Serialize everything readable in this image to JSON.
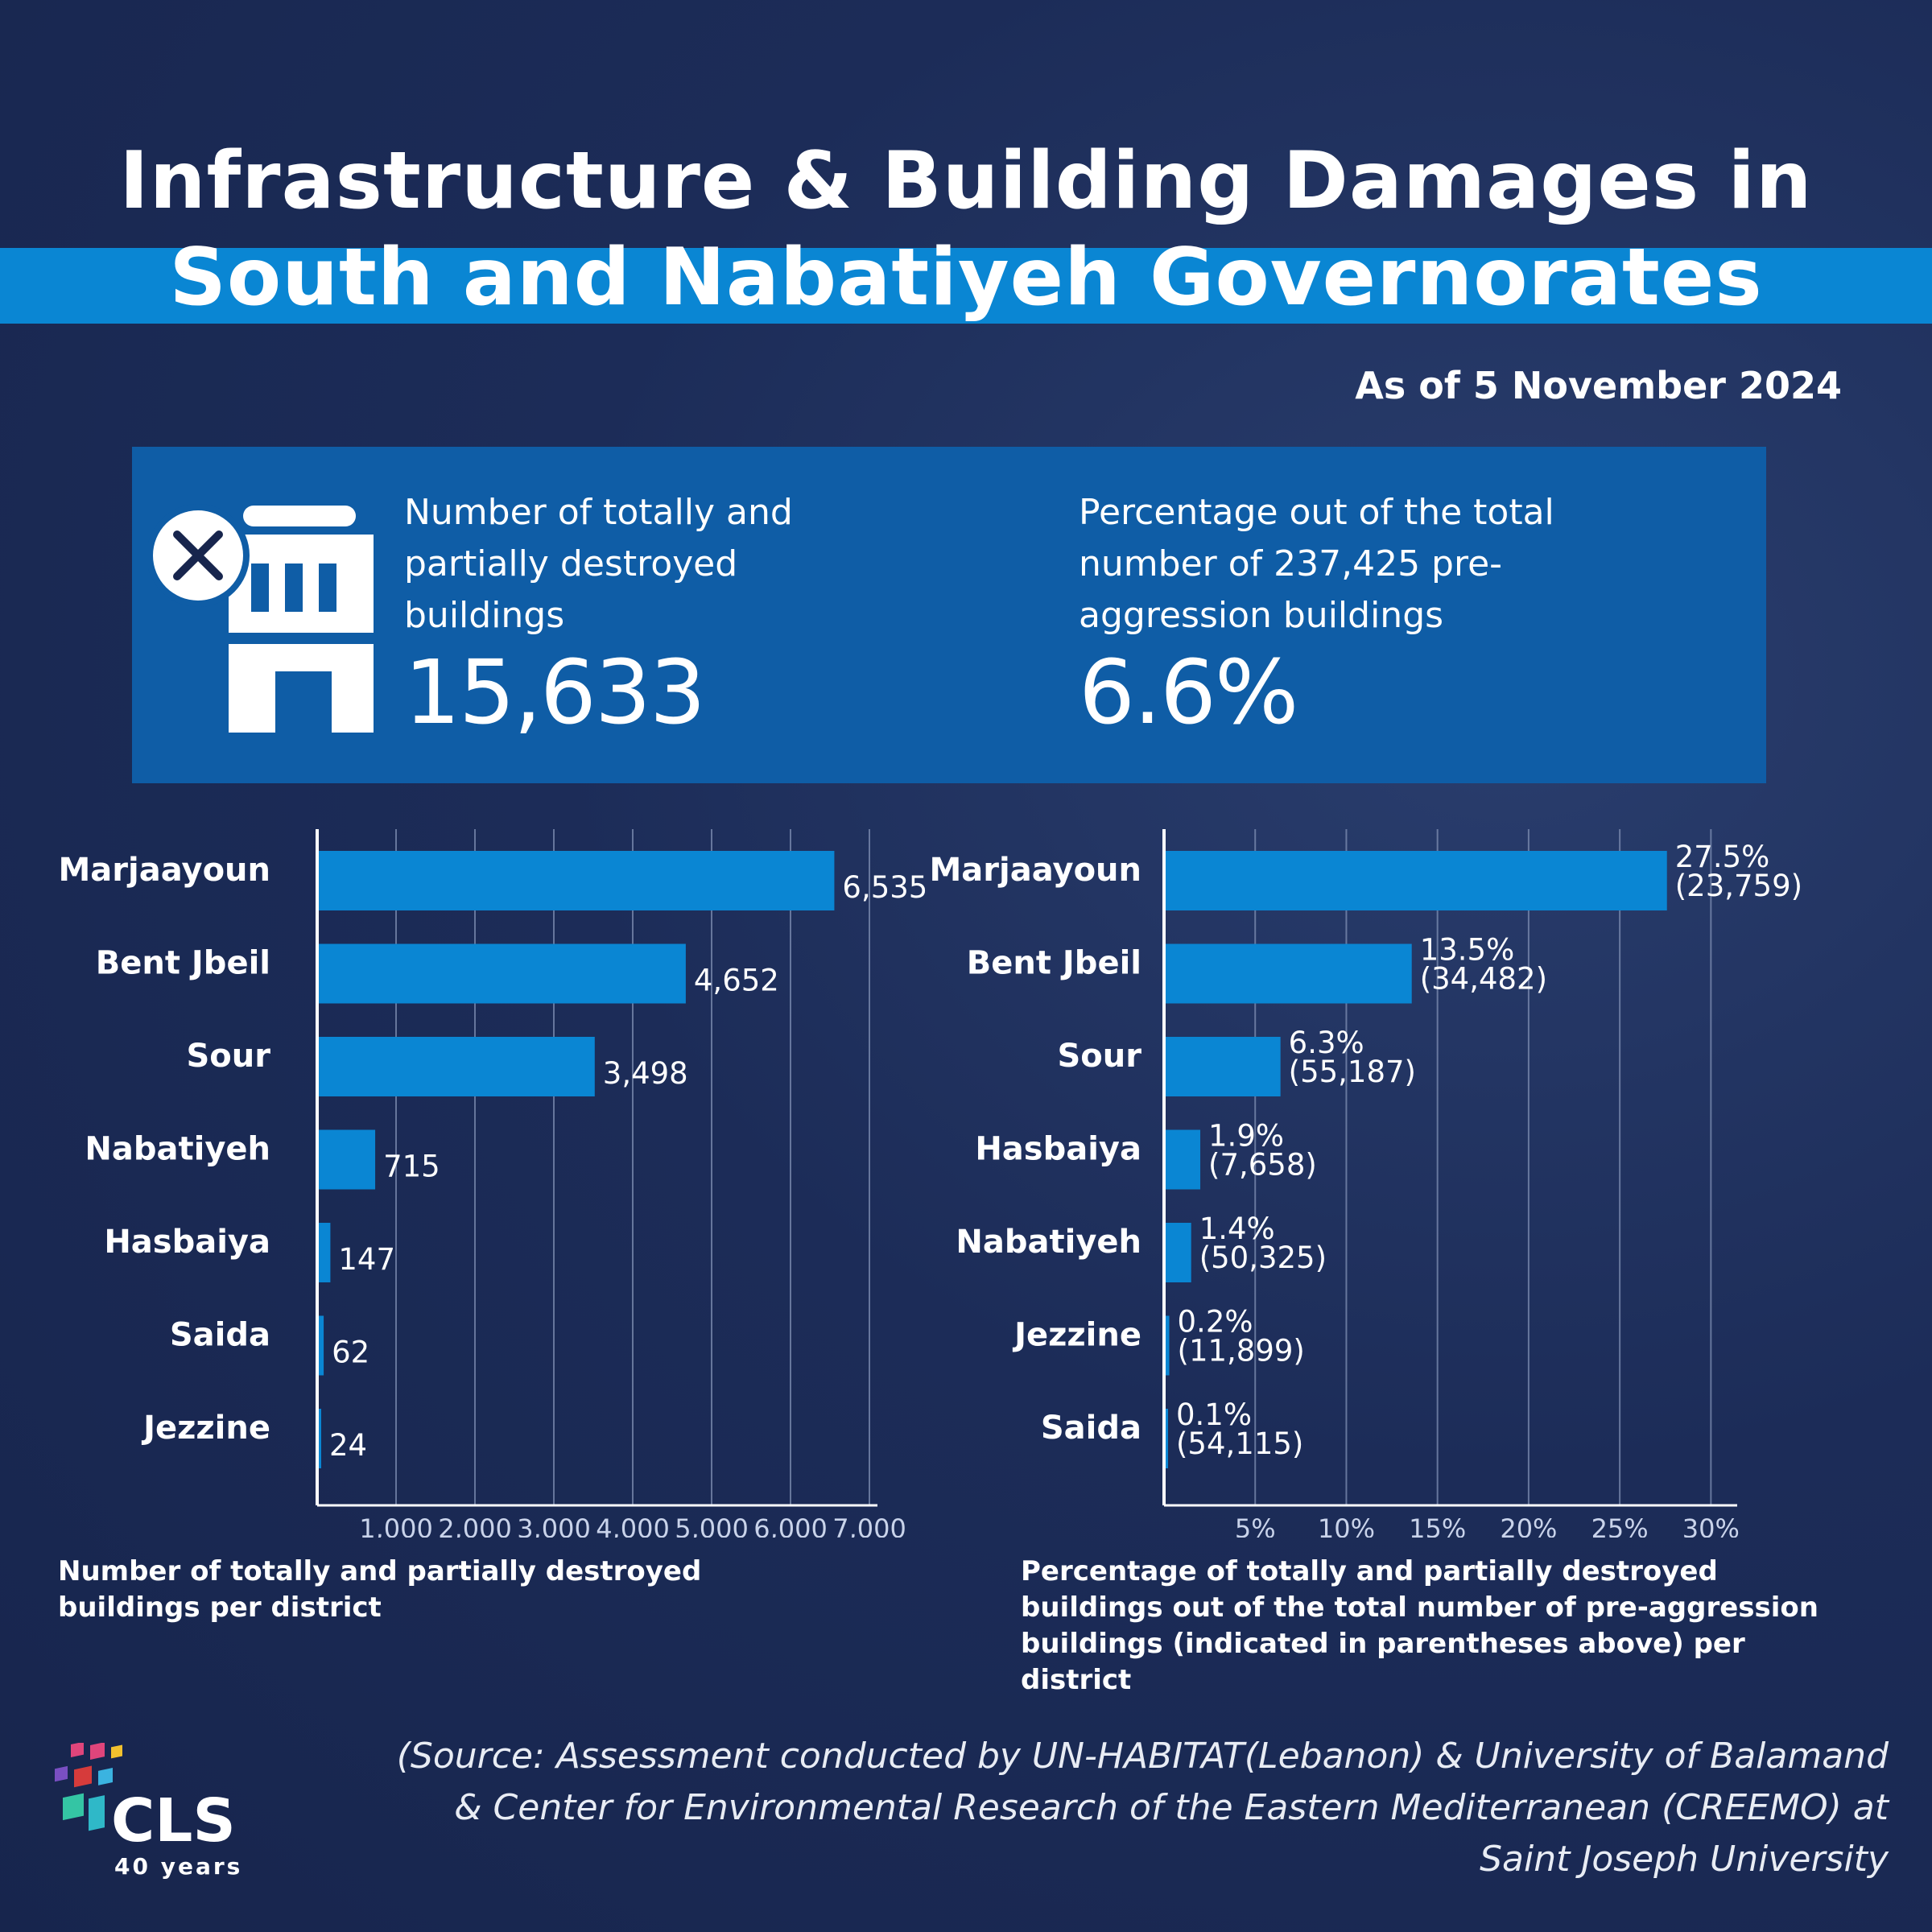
{
  "header": {
    "title_line1": "Infrastructure & Building Damages in",
    "title_line2": "South and Nabatiyeh Governorates",
    "date": "As of 5 November 2024"
  },
  "kpis": {
    "buildings_label": "Number of totally and partially destroyed buildings",
    "buildings_value": "15,633",
    "percent_label": "Percentage out of the total number of 237,425 pre-aggression buildings",
    "percent_value": "6.6%",
    "icon": "destroyed-building-icon"
  },
  "colors": {
    "background": "#1c2c58",
    "accent": "#0a86d3",
    "kpi_box": "#0f5da6",
    "bar": "#0a86d3"
  },
  "chart_data": [
    {
      "type": "bar",
      "orientation": "horizontal",
      "categories": [
        "Marjaayoun",
        "Bent Jbeil",
        "Sour",
        "Nabatiyeh",
        "Hasbaiya",
        "Saida",
        "Jezzine"
      ],
      "values": [
        6535,
        4652,
        3498,
        715,
        147,
        62,
        24
      ],
      "value_labels": [
        "6,535",
        "4,652",
        "3,498",
        "715",
        "147",
        "62",
        "24"
      ],
      "xlim": [
        0,
        7000
      ],
      "ticks": [
        1000,
        2000,
        3000,
        4000,
        5000,
        6000,
        7000
      ],
      "tick_labels": [
        "1,000",
        "2,000",
        "3,000",
        "4,000",
        "5,000",
        "6,000",
        "7,000"
      ],
      "grid": true,
      "caption": "Number of totally and partially destroyed buildings per district"
    },
    {
      "type": "bar",
      "orientation": "horizontal",
      "categories": [
        "Marjaayoun",
        "Bent Jbeil",
        "Sour",
        "Hasbaiya",
        "Nabatiyeh",
        "Jezzine",
        "Saida"
      ],
      "values": [
        27.5,
        13.5,
        6.3,
        1.9,
        1.4,
        0.2,
        0.1
      ],
      "value_labels": [
        "27.5%",
        "13.5%",
        "6.3%",
        "1.9%",
        "1.4%",
        "0.2%",
        "0.1%"
      ],
      "totals": [
        "(23,759)",
        "(34,482)",
        "(55,187)",
        "(7,658)",
        "(50,325)",
        "(11,899)",
        "(54,115)"
      ],
      "xlim": [
        0,
        31
      ],
      "ticks": [
        5,
        10,
        15,
        20,
        25,
        30
      ],
      "tick_labels": [
        "5%",
        "10%",
        "15%",
        "20%",
        "25%",
        "30%"
      ],
      "grid": true,
      "caption": "Percentage of totally and partially destroyed buildings out of the total number of pre-aggression buildings (indicated in parentheses above) per district"
    }
  ],
  "footer": {
    "source": "(Source: Assessment conducted by UN-HABITAT(Lebanon) & University of Balamand & Center for Environmental Research of the Eastern Mediterranean (CREEMO) at Saint Joseph University",
    "logo_text": "CLS",
    "logo_sub": "40 years"
  }
}
